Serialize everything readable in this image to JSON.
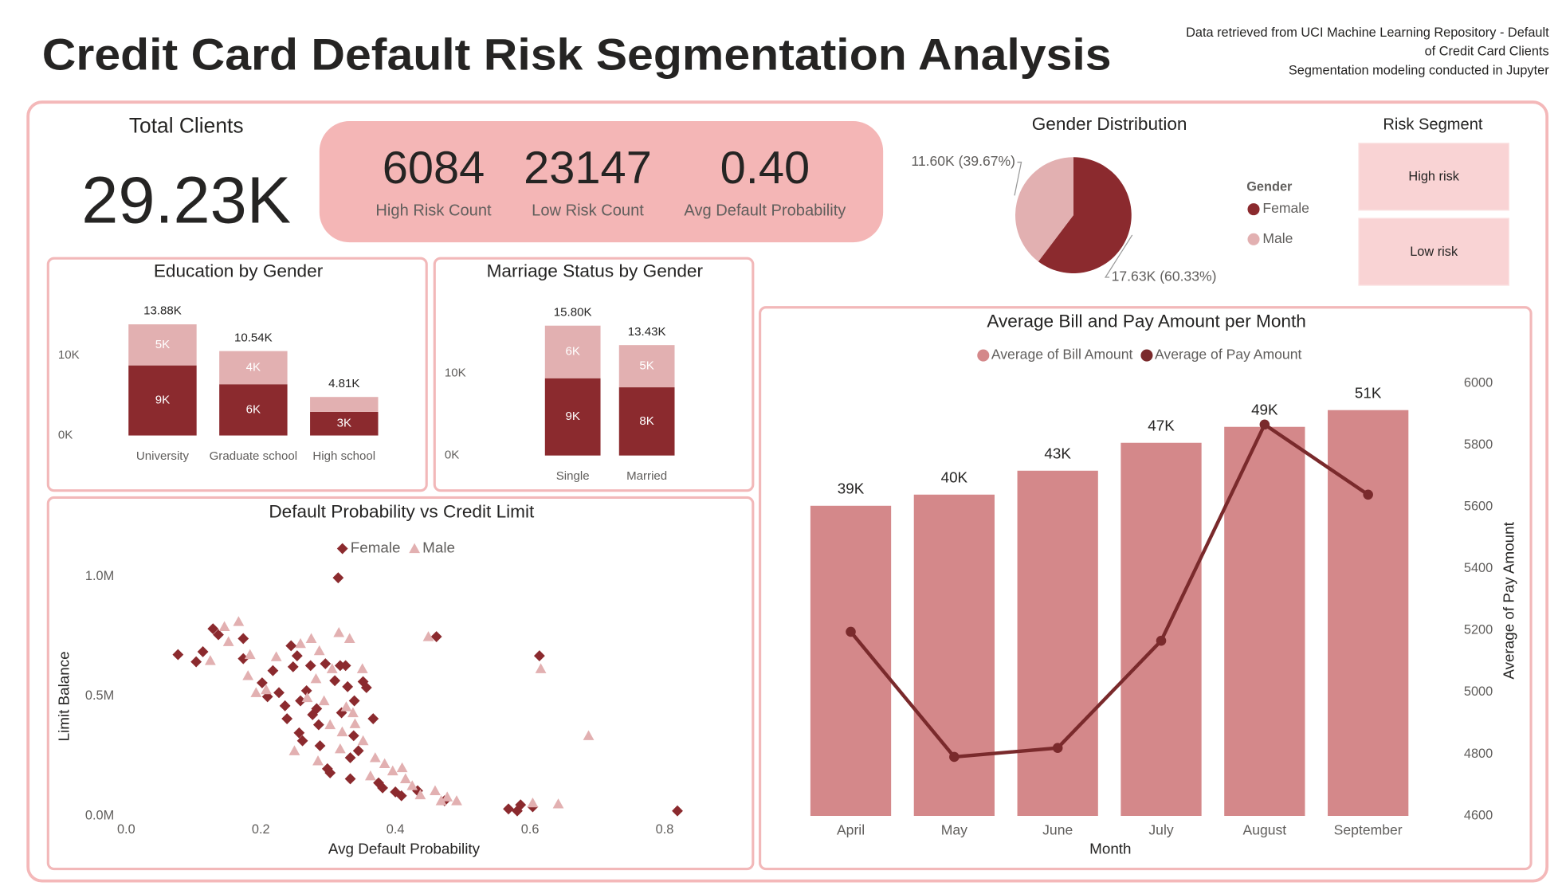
{
  "header": {
    "title": "Credit Card Default Risk Segmentation Analysis",
    "source": [
      "Data retrieved from UCI Machine Learning Repository - Default",
      "of Credit Card Clients",
      "Segmentation modeling conducted in Jupyter"
    ]
  },
  "kpis": [
    {
      "label": "Total Clients",
      "value": "29.23K"
    },
    {
      "label": "High Risk Count",
      "value": 6084
    },
    {
      "label": "Low Risk Count",
      "value": 23147
    },
    {
      "label": "Avg Default Probability",
      "value": "0.40"
    }
  ],
  "slicer": {
    "title": "Risk Segment",
    "items": [
      "High risk",
      "Low risk"
    ]
  },
  "chart_data": [
    {
      "type": "pie",
      "title": "Gender Distribution",
      "legend_title": "Gender",
      "categories": [
        "Female",
        "Male"
      ],
      "values": [
        17630,
        11600
      ],
      "value_labels": [
        "17.63K (60.33%)",
        "11.60K (39.67%)"
      ],
      "colors": [
        "#8b2a2e",
        "#e2b0b1"
      ]
    },
    {
      "type": "bar",
      "stacked": true,
      "title": "Education by Gender",
      "categories": [
        "University",
        "Graduate school",
        "High school"
      ],
      "series": [
        {
          "color": "#8b2a2e",
          "values": [
            8750,
            6400,
            2950
          ],
          "value_labels": [
            "9K",
            "6K",
            "3K"
          ]
        },
        {
          "color": "#e2b0b1",
          "values": [
            5130,
            4140,
            1860
          ],
          "value_labels": [
            "5K",
            "4K",
            null
          ]
        }
      ],
      "totals": [
        13880,
        10540,
        4810
      ],
      "total_labels": [
        "13.88K",
        "10.54K",
        "4.81K"
      ],
      "ylim": [
        0,
        17000
      ],
      "yticks": [
        {
          "value": 0,
          "label": "0K"
        },
        {
          "value": 10000,
          "label": "10K"
        }
      ]
    },
    {
      "type": "bar",
      "stacked": true,
      "title": "Marriage Status by Gender",
      "categories": [
        "Single",
        "Married"
      ],
      "series": [
        {
          "color": "#8b2a2e",
          "values": [
            9400,
            8300
          ],
          "value_labels": [
            "9K",
            "8K"
          ]
        },
        {
          "color": "#e2b0b1",
          "values": [
            6400,
            5130
          ],
          "value_labels": [
            "6K",
            "5K"
          ]
        }
      ],
      "totals": [
        15800,
        13430
      ],
      "total_labels": [
        "15.80K",
        "13.43K"
      ],
      "ylim": [
        0,
        19000
      ],
      "yticks": [
        {
          "value": 0,
          "label": "0K"
        },
        {
          "value": 10000,
          "label": "10K"
        }
      ]
    },
    {
      "type": "scatter",
      "title": "Default Probability vs Credit Limit",
      "x_label": "Avg Default Probability",
      "y_label": "Limit Balance",
      "xlim": [
        0,
        0.9
      ],
      "xticks": [
        {
          "value": 0,
          "label": "0.0"
        },
        0.2,
        0.4,
        0.6,
        0.8
      ],
      "ylim": [
        0,
        1050000
      ],
      "yticks": [
        {
          "value": 0,
          "label": "0.0M"
        },
        {
          "value": 500000,
          "label": "0.5M"
        },
        {
          "value": 1000000,
          "label": "1.0M"
        }
      ],
      "legend": "top",
      "series": [
        {
          "name": "Female",
          "color": "#8b2a2e",
          "marker": "diamond",
          "x": [
            0.315,
            0.077,
            0.104,
            0.114,
            0.129,
            0.137,
            0.174,
            0.174,
            0.202,
            0.21,
            0.218,
            0.227,
            0.236,
            0.239,
            0.245,
            0.248,
            0.254,
            0.257,
            0.262,
            0.268,
            0.274,
            0.277,
            0.283,
            0.286,
            0.288,
            0.296,
            0.299,
            0.303,
            0.31,
            0.318,
            0.32,
            0.326,
            0.329,
            0.333,
            0.333,
            0.338,
            0.339,
            0.345,
            0.352,
            0.357,
            0.367,
            0.375,
            0.381,
            0.4,
            0.409,
            0.433,
            0.461,
            0.473,
            0.568,
            0.581,
            0.586,
            0.604,
            0.614,
            0.819,
            0.259
          ],
          "y": [
            995000,
            674000,
            644000,
            686000,
            782000,
            757000,
            657000,
            741000,
            556000,
            498000,
            607000,
            515000,
            460000,
            406000,
            711000,
            623000,
            669000,
            347000,
            314000,
            523000,
            628000,
            423000,
            448000,
            381000,
            293000,
            636000,
            197000,
            180000,
            565000,
            628000,
            431000,
            628000,
            540000,
            243000,
            155000,
            335000,
            481000,
            272000,
            561000,
            536000,
            406000,
            138000,
            117000,
            100000,
            84000,
            105000,
            749000,
            63000,
            29000,
            21000,
            46000,
            38000,
            669000,
            21000,
            481000
          ]
        },
        {
          "name": "Male",
          "color": "#e2b0b1",
          "marker": "triangle",
          "x": [
            0.167,
            0.146,
            0.125,
            0.152,
            0.184,
            0.223,
            0.181,
            0.193,
            0.208,
            0.259,
            0.275,
            0.287,
            0.316,
            0.332,
            0.306,
            0.282,
            0.269,
            0.294,
            0.327,
            0.337,
            0.351,
            0.303,
            0.321,
            0.34,
            0.352,
            0.37,
            0.384,
            0.41,
            0.415,
            0.396,
            0.425,
            0.437,
            0.459,
            0.468,
            0.477,
            0.491,
            0.449,
            0.616,
            0.687,
            0.642,
            0.604,
            0.25,
            0.285,
            0.318,
            0.363
          ],
          "y": [
            812000,
            791000,
            649000,
            728000,
            674000,
            665000,
            586000,
            515000,
            527000,
            720000,
            741000,
            690000,
            766000,
            741000,
            615000,
            573000,
            494000,
            481000,
            456000,
            431000,
            615000,
            381000,
            351000,
            385000,
            314000,
            243000,
            218000,
            201000,
            155000,
            188000,
            126000,
            88000,
            105000,
            63000,
            79000,
            63000,
            749000,
            615000,
            335000,
            50000,
            54000,
            272000,
            230000,
            280000,
            167000
          ]
        }
      ]
    },
    {
      "type": "combo",
      "title": "Average Bill and Pay Amount per Month",
      "x_label": "Month",
      "y2_label": "Average of Pay Amount",
      "legend": "top",
      "categories": [
        "April",
        "May",
        "June",
        "July",
        "August",
        "September"
      ],
      "ylim": [
        0,
        55000
      ],
      "y2lim": [
        4600,
        6000
      ],
      "y2ticks": [
        4600,
        4800,
        5000,
        5200,
        5400,
        5600,
        5800,
        6000
      ],
      "series": [
        {
          "name": "Average of Bill Amount",
          "type": "bar",
          "color": "#d4888a",
          "values": [
            38900,
            40300,
            43300,
            46800,
            48800,
            50900
          ],
          "value_labels": [
            "39K",
            "40K",
            "43K",
            "47K",
            "49K",
            "51K"
          ]
        },
        {
          "name": "Average of Pay Amount",
          "type": "line",
          "axis": "y2",
          "color": "#7a2a2c",
          "values": [
            5196,
            4791,
            4820,
            5167,
            5867,
            5640
          ]
        }
      ]
    }
  ]
}
